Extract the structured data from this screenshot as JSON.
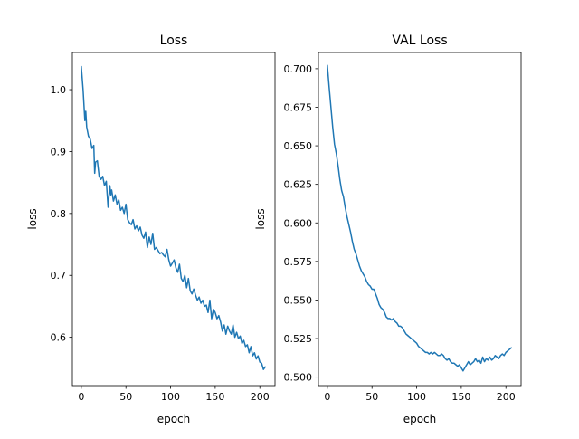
{
  "chart_data": [
    {
      "type": "line",
      "title": "Loss",
      "xlabel": "epoch",
      "ylabel": "loss",
      "xlim": [
        -10,
        217
      ],
      "ylim": [
        0.522,
        1.06
      ],
      "xticks": [
        0,
        50,
        100,
        150,
        200
      ],
      "yticks": [
        0.6,
        0.7,
        0.8,
        0.9,
        1.0
      ],
      "xtick_labels": [
        "0",
        "50",
        "100",
        "150",
        "200"
      ],
      "ytick_labels": [
        "0.6",
        "0.7",
        "0.8",
        "0.9",
        "1.0"
      ],
      "grid": false,
      "series": [
        {
          "color": "#1f77b4",
          "x": [
            0,
            2,
            4,
            5,
            6,
            8,
            10,
            12,
            14,
            15,
            16,
            18,
            20,
            22,
            24,
            26,
            28,
            30,
            32,
            33,
            34,
            36,
            38,
            40,
            42,
            44,
            46,
            48,
            50,
            52,
            54,
            56,
            58,
            60,
            62,
            64,
            66,
            68,
            70,
            72,
            74,
            76,
            78,
            80,
            82,
            84,
            86,
            88,
            90,
            92,
            94,
            96,
            98,
            100,
            102,
            104,
            106,
            108,
            110,
            112,
            114,
            116,
            118,
            120,
            122,
            124,
            126,
            128,
            130,
            132,
            134,
            136,
            138,
            140,
            142,
            144,
            146,
            148,
            150,
            152,
            154,
            156,
            158,
            160,
            162,
            164,
            166,
            168,
            170,
            172,
            174,
            176,
            178,
            180,
            182,
            184,
            186,
            188,
            190,
            192,
            194,
            196,
            198,
            200,
            202,
            204,
            206
          ],
          "values": [
            1.037,
            1.0,
            0.95,
            0.965,
            0.94,
            0.925,
            0.92,
            0.905,
            0.91,
            0.865,
            0.883,
            0.885,
            0.86,
            0.855,
            0.86,
            0.845,
            0.852,
            0.81,
            0.845,
            0.83,
            0.838,
            0.82,
            0.83,
            0.815,
            0.822,
            0.805,
            0.81,
            0.8,
            0.815,
            0.79,
            0.785,
            0.782,
            0.79,
            0.775,
            0.78,
            0.772,
            0.778,
            0.765,
            0.76,
            0.77,
            0.745,
            0.762,
            0.75,
            0.768,
            0.742,
            0.745,
            0.74,
            0.735,
            0.737,
            0.733,
            0.73,
            0.742,
            0.725,
            0.715,
            0.72,
            0.725,
            0.712,
            0.705,
            0.718,
            0.695,
            0.69,
            0.7,
            0.68,
            0.695,
            0.675,
            0.67,
            0.678,
            0.668,
            0.66,
            0.665,
            0.655,
            0.66,
            0.65,
            0.652,
            0.64,
            0.66,
            0.63,
            0.645,
            0.64,
            0.63,
            0.635,
            0.625,
            0.61,
            0.62,
            0.605,
            0.618,
            0.61,
            0.605,
            0.62,
            0.6,
            0.608,
            0.598,
            0.602,
            0.59,
            0.595,
            0.585,
            0.588,
            0.575,
            0.585,
            0.57,
            0.575,
            0.565,
            0.57,
            0.56,
            0.558,
            0.548,
            0.552
          ]
        }
      ]
    },
    {
      "type": "line",
      "title": "VAL Loss",
      "xlabel": "epoch",
      "ylabel": "loss",
      "xlim": [
        -10,
        217
      ],
      "ylim": [
        0.4945,
        0.7105
      ],
      "xticks": [
        0,
        50,
        100,
        150,
        200
      ],
      "yticks": [
        0.5,
        0.525,
        0.55,
        0.575,
        0.6,
        0.625,
        0.65,
        0.675,
        0.7
      ],
      "xtick_labels": [
        "0",
        "50",
        "100",
        "150",
        "200"
      ],
      "ytick_labels": [
        "0.500",
        "0.525",
        "0.550",
        "0.575",
        "0.600",
        "0.625",
        "0.650",
        "0.675",
        "0.700"
      ],
      "grid": false,
      "series": [
        {
          "color": "#1f77b4",
          "x": [
            0,
            2,
            4,
            6,
            8,
            10,
            12,
            14,
            16,
            18,
            20,
            22,
            24,
            26,
            28,
            30,
            32,
            34,
            36,
            38,
            40,
            42,
            44,
            46,
            48,
            50,
            52,
            54,
            56,
            58,
            60,
            62,
            64,
            66,
            68,
            70,
            72,
            74,
            76,
            78,
            80,
            82,
            84,
            86,
            88,
            90,
            92,
            94,
            96,
            98,
            100,
            102,
            104,
            106,
            108,
            110,
            112,
            114,
            116,
            118,
            120,
            122,
            124,
            126,
            128,
            130,
            132,
            134,
            136,
            138,
            140,
            142,
            144,
            146,
            148,
            150,
            152,
            154,
            156,
            158,
            160,
            162,
            164,
            166,
            168,
            170,
            172,
            174,
            176,
            178,
            180,
            182,
            184,
            186,
            188,
            190,
            192,
            194,
            196,
            198,
            200,
            202,
            204,
            206
          ],
          "values": [
            0.702,
            0.688,
            0.675,
            0.662,
            0.651,
            0.645,
            0.637,
            0.628,
            0.621,
            0.617,
            0.61,
            0.604,
            0.599,
            0.594,
            0.588,
            0.583,
            0.58,
            0.576,
            0.572,
            0.569,
            0.567,
            0.565,
            0.562,
            0.56,
            0.559,
            0.557,
            0.557,
            0.554,
            0.551,
            0.547,
            0.545,
            0.544,
            0.542,
            0.539,
            0.538,
            0.538,
            0.537,
            0.538,
            0.536,
            0.535,
            0.533,
            0.533,
            0.532,
            0.53,
            0.528,
            0.527,
            0.526,
            0.525,
            0.524,
            0.523,
            0.522,
            0.52,
            0.519,
            0.518,
            0.517,
            0.516,
            0.516,
            0.515,
            0.516,
            0.515,
            0.516,
            0.515,
            0.514,
            0.514,
            0.515,
            0.514,
            0.512,
            0.511,
            0.512,
            0.51,
            0.509,
            0.509,
            0.508,
            0.507,
            0.508,
            0.506,
            0.504,
            0.506,
            0.508,
            0.51,
            0.508,
            0.509,
            0.51,
            0.512,
            0.51,
            0.511,
            0.509,
            0.513,
            0.51,
            0.512,
            0.511,
            0.513,
            0.511,
            0.512,
            0.514,
            0.513,
            0.512,
            0.514,
            0.515,
            0.514,
            0.516,
            0.517,
            0.518,
            0.519
          ]
        }
      ]
    }
  ]
}
